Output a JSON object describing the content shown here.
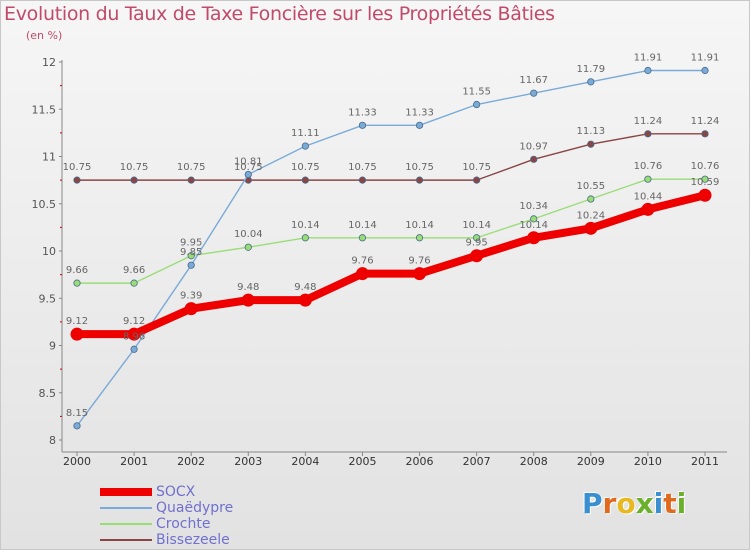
{
  "title": "Evolution du Taux de Taxe Foncière sur les Propriétés Bâties",
  "subtitle": "(en %)",
  "logo": {
    "text": "Proxiti",
    "letters": [
      {
        "ch": "P",
        "color": "#3a8fd0"
      },
      {
        "ch": "r",
        "color": "#e06a1e"
      },
      {
        "ch": "o",
        "color": "#e8b820"
      },
      {
        "ch": "x",
        "color": "#6ab02a"
      },
      {
        "ch": "i",
        "color": "#3a8fd0"
      },
      {
        "ch": "t",
        "color": "#e06a1e"
      },
      {
        "ch": "i",
        "color": "#6ab02a"
      }
    ]
  },
  "chart_data": {
    "type": "line",
    "x": [
      "2000",
      "2001",
      "2002",
      "2003",
      "2004",
      "2005",
      "2006",
      "2007",
      "2008",
      "2009",
      "2010",
      "2011"
    ],
    "ylim": [
      8,
      12
    ],
    "yticks": [
      "8",
      "8.5",
      "9",
      "9.5",
      "10",
      "10.5",
      "11",
      "11.5",
      "12"
    ],
    "grid": false,
    "legend_position": "bottom-left",
    "series": [
      {
        "name": "SOCX",
        "color": "#ee0000",
        "width": "thick",
        "values": [
          9.12,
          9.12,
          9.39,
          9.48,
          9.48,
          9.76,
          9.76,
          9.95,
          10.14,
          10.24,
          10.44,
          10.59
        ],
        "labels": [
          "9.12",
          "9.12",
          "9.39",
          "9.48",
          "9.48",
          "9.76",
          "9.76",
          "9.95",
          "10.14",
          "10.24",
          "10.44",
          "10.59"
        ]
      },
      {
        "name": "Quaëdypre",
        "color": "#7aaad8",
        "width": "thin",
        "values": [
          8.15,
          8.96,
          9.85,
          10.81,
          11.11,
          11.33,
          11.33,
          11.55,
          11.67,
          11.79,
          11.91,
          11.91
        ],
        "labels": [
          "8.15",
          "8.96",
          "9.85",
          "10.81",
          "11.11",
          "11.33",
          "11.33",
          "11.55",
          "11.67",
          "11.79",
          "11.91",
          "11.91"
        ]
      },
      {
        "name": "Crochte",
        "color": "#99dd77",
        "width": "thin",
        "values": [
          9.66,
          9.66,
          9.95,
          10.04,
          10.14,
          10.14,
          10.14,
          10.14,
          10.34,
          10.55,
          10.76,
          10.76
        ],
        "labels": [
          "9.66",
          "9.66",
          "9.95",
          "10.04",
          "10.14",
          "10.14",
          "10.14",
          "10.14",
          "10.34",
          "10.55",
          "10.76",
          "10.76"
        ]
      },
      {
        "name": "Bissezeele",
        "color": "#8a4545",
        "width": "thin",
        "values": [
          10.75,
          10.75,
          10.75,
          10.75,
          10.75,
          10.75,
          10.75,
          10.75,
          10.97,
          11.13,
          11.24,
          11.24
        ],
        "labels": [
          "10.75",
          "10.75",
          "10.75",
          "10.75",
          "10.75",
          "10.75",
          "10.75",
          "10.75",
          "10.97",
          "11.13",
          "11.24",
          "11.24"
        ]
      }
    ]
  }
}
